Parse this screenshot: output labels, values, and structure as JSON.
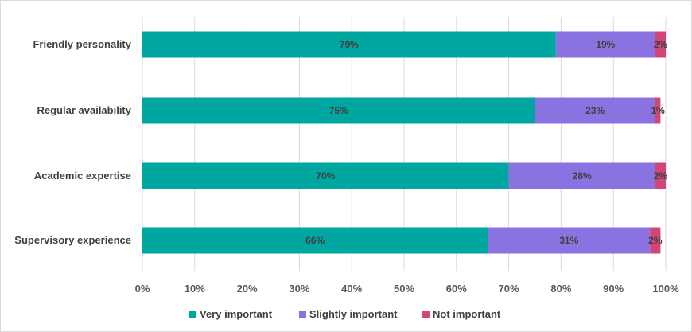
{
  "chart_data": {
    "type": "bar",
    "orientation": "horizontal",
    "stacked": true,
    "categories": [
      "Friendly personality",
      "Regular availability",
      "Academic expertise",
      "Supervisory experience"
    ],
    "series": [
      {
        "name": "Very important",
        "color": "#00A6A0",
        "values": [
          79,
          75,
          70,
          66
        ],
        "labels": [
          "79%",
          "75%",
          "70%",
          "66%"
        ]
      },
      {
        "name": "Slightly important",
        "color": "#8A73E0",
        "values": [
          19,
          23,
          28,
          31
        ],
        "labels": [
          "19%",
          "23%",
          "28%",
          "31%"
        ]
      },
      {
        "name": "Not important",
        "color": "#D0457A",
        "values": [
          2,
          1,
          2,
          2
        ],
        "labels": [
          "2%",
          "1%",
          "2%",
          "2%"
        ]
      }
    ],
    "xlim": [
      0,
      100
    ],
    "x_ticks": [
      "0%",
      "10%",
      "20%",
      "30%",
      "40%",
      "50%",
      "60%",
      "70%",
      "80%",
      "90%",
      "100%"
    ],
    "grid": true,
    "legend_position": "bottom"
  }
}
